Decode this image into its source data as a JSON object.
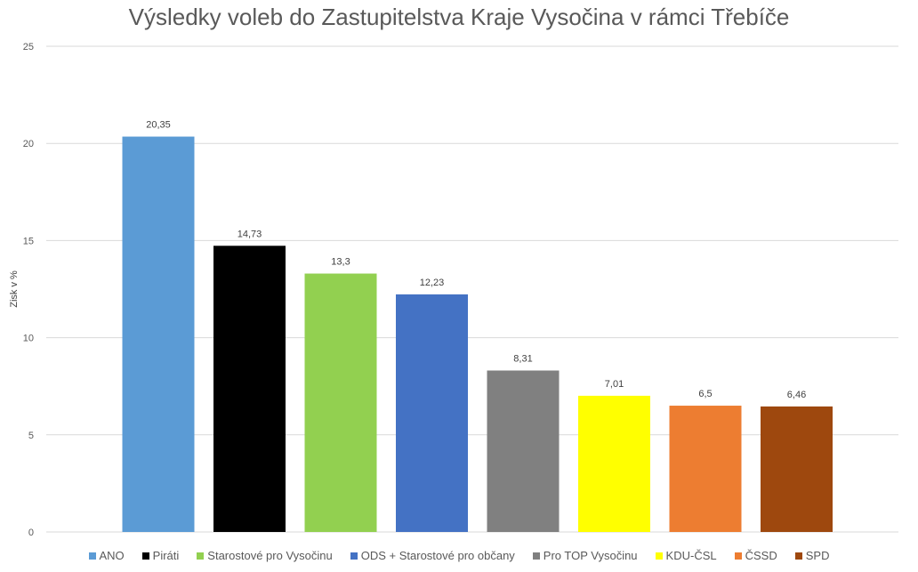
{
  "chart_data": {
    "type": "bar",
    "title": "Výsledky voleb do Zastupitelstva Kraje Vysočina v rámci Třebíče",
    "xlabel": "",
    "ylabel": "Zisk v %",
    "ylim": [
      0,
      25
    ],
    "yticks": [
      "0",
      "5",
      "10",
      "15",
      "20",
      "25"
    ],
    "grid": true,
    "legend_position": "bottom",
    "categories": [
      "ANO",
      "Piráti",
      "Starostové pro Vysočinu",
      "ODS + Starostové pro občany",
      "Pro TOP Vysočinu",
      "KDU-ČSL",
      "ČSSD",
      "SPD"
    ],
    "values": [
      20.35,
      14.73,
      13.3,
      12.23,
      8.31,
      7.01,
      6.5,
      6.46
    ],
    "value_labels": [
      "20,35",
      "14,73",
      "13,3",
      "12,23",
      "8,31",
      "7,01",
      "6,5",
      "6,46"
    ],
    "colors": [
      "#5b9bd5",
      "#000000",
      "#92d050",
      "#4472c4",
      "#808080",
      "#ffff00",
      "#ed7d31",
      "#9e480e"
    ]
  }
}
